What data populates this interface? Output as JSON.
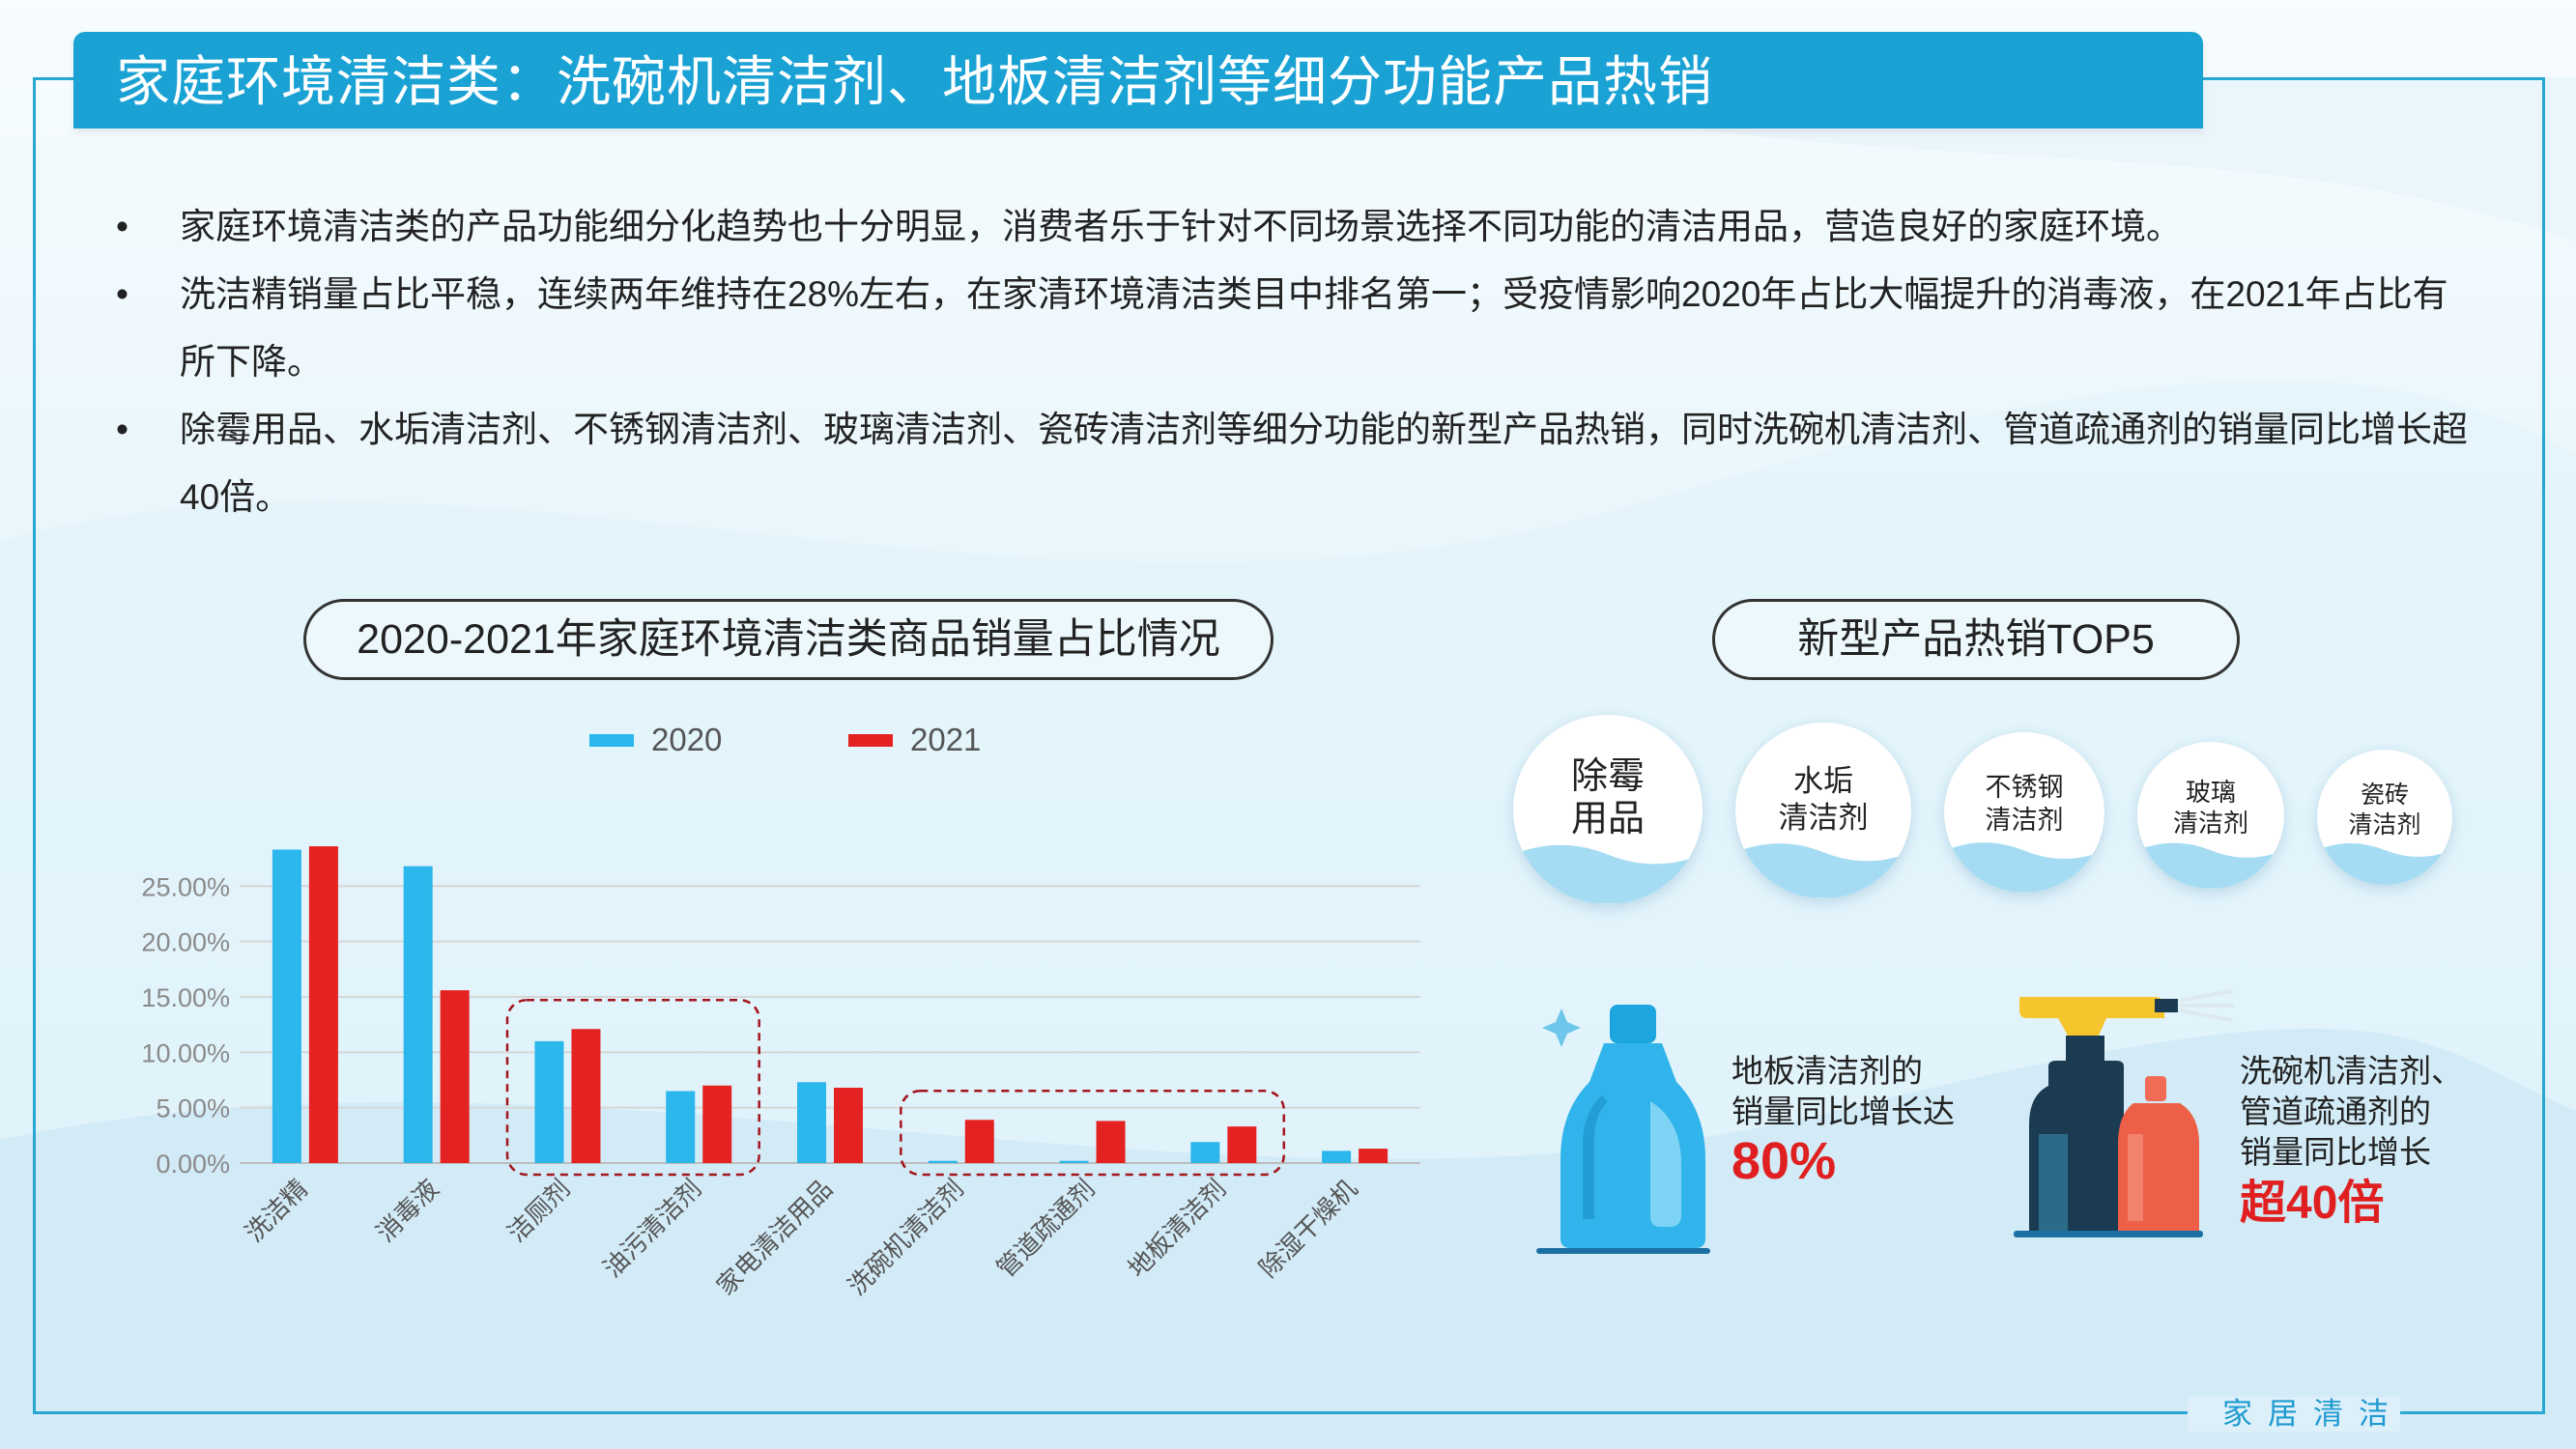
{
  "header": {
    "title": "家庭环境清洁类：洗碗机清洁剂、地板清洁剂等细分功能产品热销"
  },
  "bullets": [
    {
      "marker": "•",
      "text": "家庭环境清洁类的产品功能细分化趋势也十分明显，消费者乐于针对不同场景选择不同功能的清洁用品，营造良好的家庭环境。"
    },
    {
      "marker": "•",
      "text": "洗洁精销量占比平稳，连续两年维持在28%左右，在家清环境清洁类目中排名第一；受疫情影响2020年占比大幅提升的消毒液，在2021年占比有所下降。"
    },
    {
      "marker": "•",
      "text": "除霉用品、水垢清洁剂、不锈钢清洁剂、玻璃清洁剂、瓷砖清洁剂等细分功能的新型产品热销，同时洗碗机清洁剂、管道疏通剂的销量同比增长超40倍。"
    }
  ],
  "chart_data": {
    "type": "bar",
    "title": "2020-2021年家庭环境清洁类商品销量占比情况",
    "categories": [
      "洗洁精",
      "消毒液",
      "洁厕剂",
      "油污清洁剂",
      "家电清洁用品",
      "洗碗机清洁剂",
      "管道疏通剂",
      "地板清洁剂",
      "除湿干燥机"
    ],
    "series": [
      {
        "name": "2020",
        "color": "#2bb6ec",
        "values": [
          28.3,
          26.8,
          11.0,
          6.5,
          7.3,
          0.2,
          0.2,
          1.9,
          1.1
        ]
      },
      {
        "name": "2021",
        "color": "#e52222",
        "values": [
          28.6,
          15.6,
          12.1,
          7.0,
          6.8,
          3.9,
          3.8,
          3.3,
          1.3
        ]
      }
    ],
    "yticks": [
      "0.00%",
      "5.00%",
      "10.00%",
      "15.00%",
      "20.00%",
      "25.00%"
    ],
    "ylim": [
      0,
      30
    ],
    "grid": true,
    "legend": "top",
    "highlight_groups": [
      [
        2,
        3
      ],
      [
        5,
        7
      ]
    ]
  },
  "top5": {
    "title": "新型产品热销TOP5",
    "items": [
      {
        "line1": "除霉",
        "line2": "用品"
      },
      {
        "line1": "水垢",
        "line2": "清洁剂"
      },
      {
        "line1": "不锈钢",
        "line2": "清洁剂"
      },
      {
        "line1": "玻璃",
        "line2": "清洁剂"
      },
      {
        "line1": "瓷砖",
        "line2": "清洁剂"
      }
    ]
  },
  "stats": {
    "floor": {
      "line1": "地板清洁剂的",
      "line2": "销量同比增长达",
      "value": "80%"
    },
    "dish": {
      "line1": "洗碗机清洁剂、",
      "line2": "管道疏通剂的",
      "line3": "销量同比增长",
      "value": "超40倍"
    }
  },
  "footer": {
    "text": "家居清洁"
  }
}
